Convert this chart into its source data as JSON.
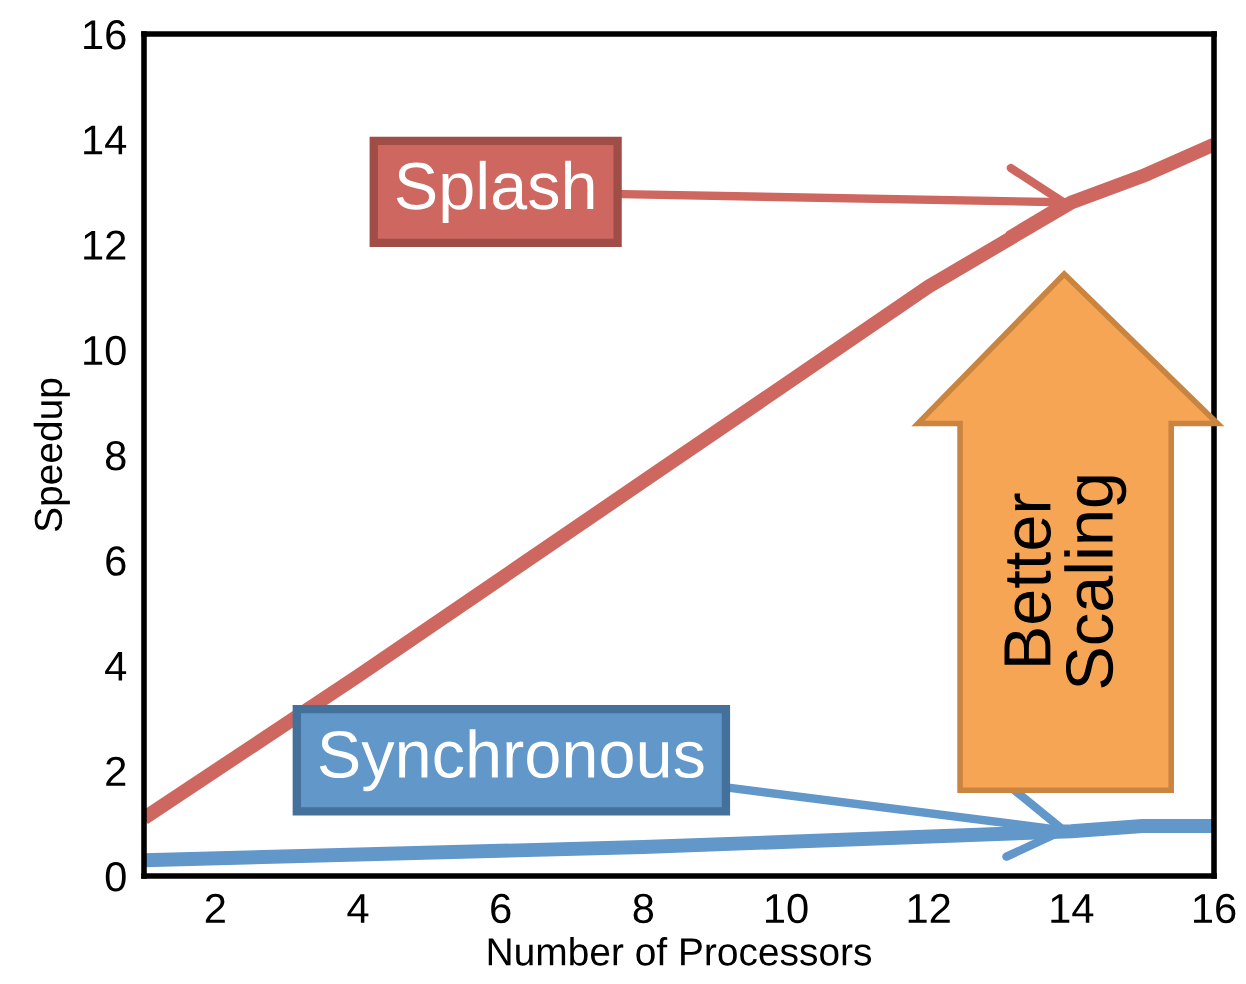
{
  "chart_data": {
    "type": "line",
    "xlabel": "Number of Processors",
    "ylabel": "Speedup",
    "xlim": [
      1,
      16
    ],
    "ylim": [
      0,
      16
    ],
    "xticks": [
      2,
      4,
      6,
      8,
      10,
      12,
      14,
      16
    ],
    "yticks": [
      0,
      2,
      4,
      6,
      8,
      10,
      12,
      14,
      16
    ],
    "grid": false,
    "marker": "none",
    "line_style": "solid",
    "series": [
      {
        "name": "Splash",
        "color": "#cd6760",
        "x": [
          1,
          4,
          8,
          12,
          13,
          14,
          15,
          16
        ],
        "values": [
          1.1,
          3.8,
          7.5,
          11.2,
          12.0,
          12.8,
          13.3,
          13.9
        ]
      },
      {
        "name": "Synchronous",
        "color": "#6197c9",
        "x": [
          1,
          8,
          14,
          15,
          16
        ],
        "values": [
          0.3,
          0.55,
          0.85,
          0.95,
          0.95
        ]
      }
    ],
    "annotations": [
      "Better Scaling"
    ]
  }
}
